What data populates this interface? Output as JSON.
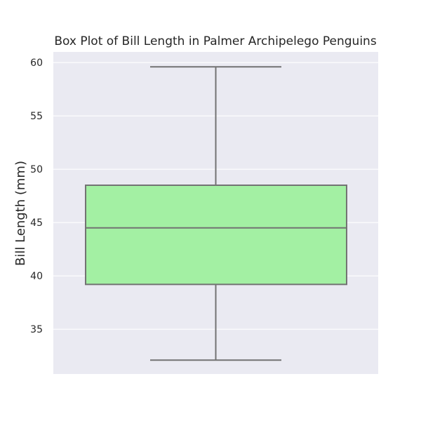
{
  "chart_data": {
    "type": "box",
    "title": "Box Plot of Bill Length in Palmer Archipelego Penguins",
    "xlabel": "",
    "ylabel": "Bill Length (mm)",
    "ylim": [
      30.8,
      61.0
    ],
    "yticks": [
      35,
      40,
      45,
      50,
      55,
      60
    ],
    "grid": true,
    "series": [
      {
        "min": 32.1,
        "q1": 39.2,
        "median": 44.5,
        "q3": 48.5,
        "max": 59.6
      }
    ],
    "colors": {
      "background": "#EAEAF2",
      "grid": "#FFFFFF",
      "box_fill": "#A3F0A3",
      "box_line": "#737373",
      "text": "#262626"
    }
  }
}
